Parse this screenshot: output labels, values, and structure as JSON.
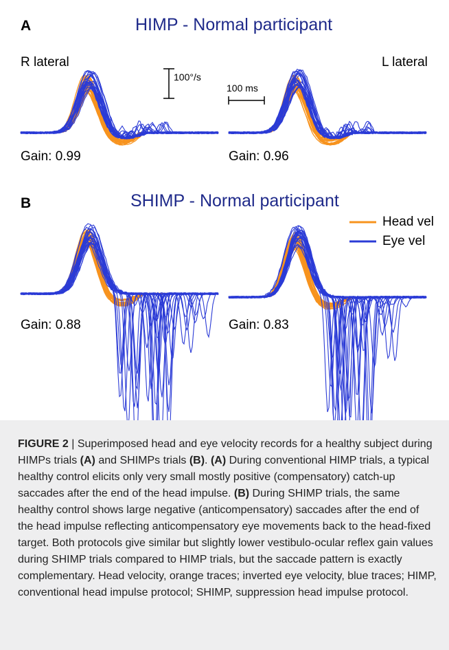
{
  "panel_a": {
    "letter": "A",
    "title": "HIMP - Normal participant",
    "left_label": "R lateral",
    "right_label": "L lateral",
    "velocity_scale": "100°/s",
    "time_scale": "100 ms",
    "left_gain": "Gain: 0.99",
    "right_gain": "Gain: 0.96"
  },
  "panel_b": {
    "letter": "B",
    "title": "SHIMP - Normal participant",
    "left_gain": "Gain: 0.88",
    "right_gain": "Gain: 0.83"
  },
  "legend": {
    "head": "Head vel",
    "eye": "Eye vel"
  },
  "colors": {
    "head": "#f7931e",
    "eye": "#2b3bd6",
    "title": "#1f2a8a",
    "caption_bg": "#eeeeef"
  },
  "caption": {
    "figure_label": "FIGURE 2",
    "p1": " | Superimposed head and eye velocity records for a healthy subject during HIMPs trials ",
    "ref_a1": "(A)",
    "p2": " and SHIMPs trials ",
    "ref_b1": "(B)",
    "p3": ". ",
    "ref_a2": "(A)",
    "p4": " During conventional HIMP trials, a typical healthy control elicits only very small mostly positive (compensatory) catch-up saccades after the end of the head impulse. ",
    "ref_b2": "(B)",
    "p5": " During SHIMP trials, the same healthy control shows large negative (anticompensatory) saccades after the end of the head impulse reflecting anticompensatory eye movements back to the head-fixed target. Both protocols give similar but slightly lower vestibulo-ocular reflex gain values during SHIMP trials compared to HIMP trials, but the saccade pattern is exactly complementary. Head velocity, orange traces; inverted eye velocity, blue traces; HIMP, conventional head impulse protocol; SHIMP, suppression head impulse protocol."
  }
}
